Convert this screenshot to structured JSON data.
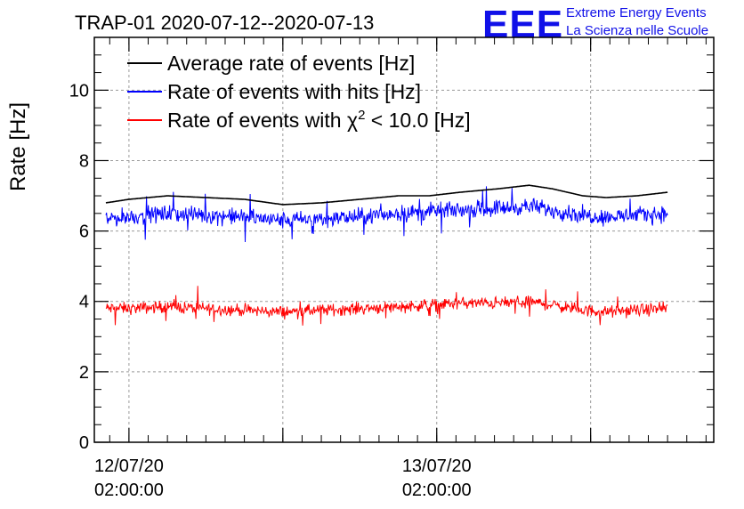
{
  "title": "TRAP-01 2020-07-12--2020-07-13",
  "logo": {
    "mark": "EEE",
    "line1": "Extreme Energy Events",
    "line2": "La Scienza nelle Scuole",
    "color": "#1010e8"
  },
  "chart_data": {
    "type": "line",
    "title": "TRAP-01 2020-07-12--2020-07-13",
    "ylabel": "Rate [Hz]",
    "xlabel": "",
    "ylim": [
      0,
      11.5
    ],
    "xlim": [
      -0.45,
      7.6
    ],
    "yticks": [
      0,
      2,
      4,
      6,
      8,
      10
    ],
    "x_tick_labels": [
      {
        "x": 0,
        "date": "12/07/20",
        "time": "02:00:00"
      },
      {
        "x": 4,
        "date": "13/07/20",
        "time": "02:00:00"
      }
    ],
    "x_major_ticks": [
      0,
      2,
      4,
      6
    ],
    "grid": true,
    "x_range_of_data": [
      -0.45,
      7.05
    ],
    "series": [
      {
        "name": "Average rate of events [Hz]",
        "color": "#000000",
        "x": [
          -0.3,
          0.0,
          0.5,
          1.0,
          1.5,
          2.0,
          2.5,
          3.0,
          3.5,
          3.9,
          4.3,
          4.8,
          5.2,
          5.5,
          5.9,
          6.2,
          6.6,
          7.0
        ],
        "values": [
          6.8,
          6.9,
          7.0,
          6.95,
          6.9,
          6.75,
          6.8,
          6.9,
          7.0,
          7.0,
          7.1,
          7.2,
          7.3,
          7.2,
          7.0,
          6.95,
          7.0,
          7.1
        ]
      },
      {
        "name": "Rate of events with hits [Hz]",
        "color": "#0000ff",
        "x": [
          -0.3,
          0.0,
          0.5,
          1.0,
          1.5,
          2.0,
          2.5,
          3.0,
          3.5,
          3.9,
          4.3,
          4.8,
          5.2,
          5.5,
          5.9,
          6.2,
          6.6,
          7.0
        ],
        "values": [
          6.35,
          6.4,
          6.5,
          6.45,
          6.4,
          6.3,
          6.35,
          6.4,
          6.5,
          6.55,
          6.6,
          6.65,
          6.7,
          6.6,
          6.45,
          6.4,
          6.45,
          6.5
        ],
        "noise_amplitude": 0.35
      },
      {
        "name": "Rate of events with χ² < 10.0 [Hz]",
        "color": "#ff0000",
        "x": [
          -0.3,
          0.0,
          0.5,
          1.0,
          1.5,
          2.0,
          2.5,
          3.0,
          3.5,
          3.9,
          4.3,
          4.8,
          5.2,
          5.5,
          5.9,
          6.2,
          6.6,
          7.0
        ],
        "values": [
          3.8,
          3.8,
          3.85,
          3.8,
          3.75,
          3.7,
          3.75,
          3.8,
          3.85,
          3.9,
          3.95,
          3.95,
          4.0,
          3.9,
          3.75,
          3.7,
          3.75,
          3.8
        ],
        "noise_amplitude": 0.25
      }
    ],
    "legend": {
      "placement": "top-left",
      "entries": [
        {
          "prefix": "Average rate of events [Hz]",
          "color": "#000000"
        },
        {
          "prefix": "Rate of events with hits [Hz]",
          "color": "#0000ff"
        },
        {
          "prefix": "Rate of events with ",
          "chi": "χ",
          "sup": "2",
          "suffix": " < 10.0 [Hz]",
          "color": "#ff0000"
        }
      ]
    }
  }
}
